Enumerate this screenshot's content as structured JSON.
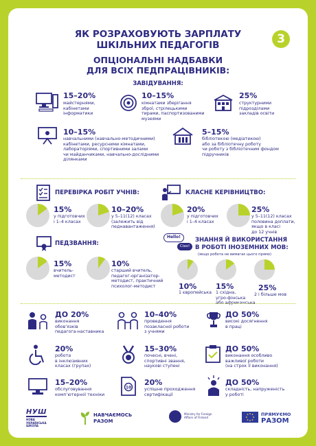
{
  "title_line1": "ЯК РОЗРАХОВУЮТЬ ЗАРПЛАТУ",
  "title_line2": "ШКІЛЬНИХ ПЕДАГОГІВ",
  "badge_number": "3",
  "subtitle_line1": "ОПЦІОНАЛЬНІ НАДБАВКИ",
  "subtitle_line2": "ДЛЯ ВСІХ ПЕДПРАЦІВНИКІВ:",
  "management": {
    "header": "ЗАВІДУВАННЯ:",
    "items": [
      {
        "value": "15–20%",
        "text": [
          "майстернями,",
          "кабінетами",
          "інформатики"
        ]
      },
      {
        "value": "10–15%",
        "text": [
          "кімнатами зберігання",
          "зброї, стрілецькими",
          "тирами, паспортизованими",
          "музеями"
        ]
      },
      {
        "value": "25%",
        "text": [
          "структурними",
          "підрозділами",
          "закладів освіти"
        ]
      },
      {
        "value": "10–15%",
        "text": [
          "навчальними (навчально-методичними)",
          "кабінетами, ресурсними кімнатами,",
          "лабораторіями, спортивними залами",
          "чи майданчиками, навчально-дослідними",
          "ділянками"
        ]
      },
      {
        "value": "5–15%",
        "text": [
          "бібліотекою (медіатекою)",
          "або за бібліотечну роботу",
          "чи роботу з бібліотечним фондом",
          "підручників"
        ]
      }
    ]
  },
  "checking": {
    "header": "ПЕРЕВІРКА РОБІТ УЧНІВ:",
    "items": [
      {
        "value": "15%",
        "text": [
          "у підготовчих",
          "і 1–4 класах"
        ],
        "fraction": 0.15
      },
      {
        "value": "10–20%",
        "text": [
          "у 5–11(12) класах",
          "(залежить від",
          "педнавантаження)"
        ],
        "fraction": 0.2
      }
    ]
  },
  "class_leadership": {
    "header": "КЛАСНЕ КЕРІВНИЦТВО:",
    "items": [
      {
        "value": "20%",
        "text": [
          "у підготовчих",
          "і 1–4 класах"
        ],
        "fraction": 0.2
      },
      {
        "value": "25%",
        "text": [
          "у 5–11(12) класах",
          "половина доплати,",
          "якщо в класі",
          "до 12 учнів"
        ],
        "fraction": 0.25
      }
    ]
  },
  "rank": {
    "header": "ПЕДЗВАННЯ:",
    "items": [
      {
        "value": "15%",
        "text": [
          "вчитель-",
          "методист"
        ],
        "fraction": 0.15
      },
      {
        "value": "10%",
        "text": [
          "старший вчитель,",
          "педагог-організатор-",
          "методист, практичний",
          "психолог-методист"
        ],
        "fraction": 0.1
      }
    ]
  },
  "languages": {
    "header_line1": "ЗНАННЯ Й ВИКОРИСТАННЯ",
    "header_line2": "В РОБОТІ ІНОЗЕМНИХ МОВ:",
    "note": "(якщо робота не вимагає цього прямо)",
    "bubble1": "Hello!",
    "bubble2": "Ciao!",
    "items": [
      {
        "value": "10%",
        "text": [
          "1 європейська"
        ],
        "fraction": 0.1
      },
      {
        "value": "15%",
        "text": [
          "1 східна,",
          "угро-фінська",
          "або африканська"
        ],
        "fraction": 0.15
      },
      {
        "value": "25%",
        "text": [
          "2 і більше мов"
        ],
        "fraction": 0.25
      }
    ]
  },
  "bottom": {
    "items": [
      {
        "value": "ДО 20%",
        "text": [
          "виконання",
          "обов’язків",
          "педагога-наставника"
        ]
      },
      {
        "value": "10–40%",
        "text": [
          "проведення",
          "позакласної роботи",
          "з учнями"
        ]
      },
      {
        "value": "ДО 50%",
        "text": [
          "високі досягнення",
          "в праці"
        ]
      },
      {
        "value": "20%",
        "text": [
          "робота",
          "в інклюзивних",
          "класах (групах)"
        ]
      },
      {
        "value": "15–30%",
        "text": [
          "почесні, вчені,",
          "спортивні звання,",
          "наукові ступені"
        ]
      },
      {
        "value": "ДО 50%",
        "text": [
          "виконання особливо",
          "важливої роботи",
          "(на строк її виконання)"
        ]
      },
      {
        "value": "15–20%",
        "text": [
          "обслуговування",
          "комп’ютерної техніки"
        ]
      },
      {
        "value": "20%",
        "text": [
          "успішне проходження",
          "сертифікації"
        ]
      },
      {
        "value": "ДО 50%",
        "text": [
          "складність, напруженість",
          "у роботі"
        ]
      }
    ]
  },
  "logos": {
    "nush": "НУШ",
    "nush_sub": [
      "НОВА",
      "УКРАЇНСЬКА",
      "ШКОЛА"
    ],
    "study_line1": "НАВЧАЄМОСЬ",
    "study_line2": "РАЗОМ",
    "ministry_line1": "Ministry for Foreign",
    "ministry_line2": "Affairs of Finland",
    "eu_line1": "ПРЯМУЄМО",
    "eu_line2": "РАЗОМ"
  },
  "colors": {
    "navy": "#2d2a82",
    "lime": "#b9d22b",
    "grey": "#d9d9d9"
  }
}
